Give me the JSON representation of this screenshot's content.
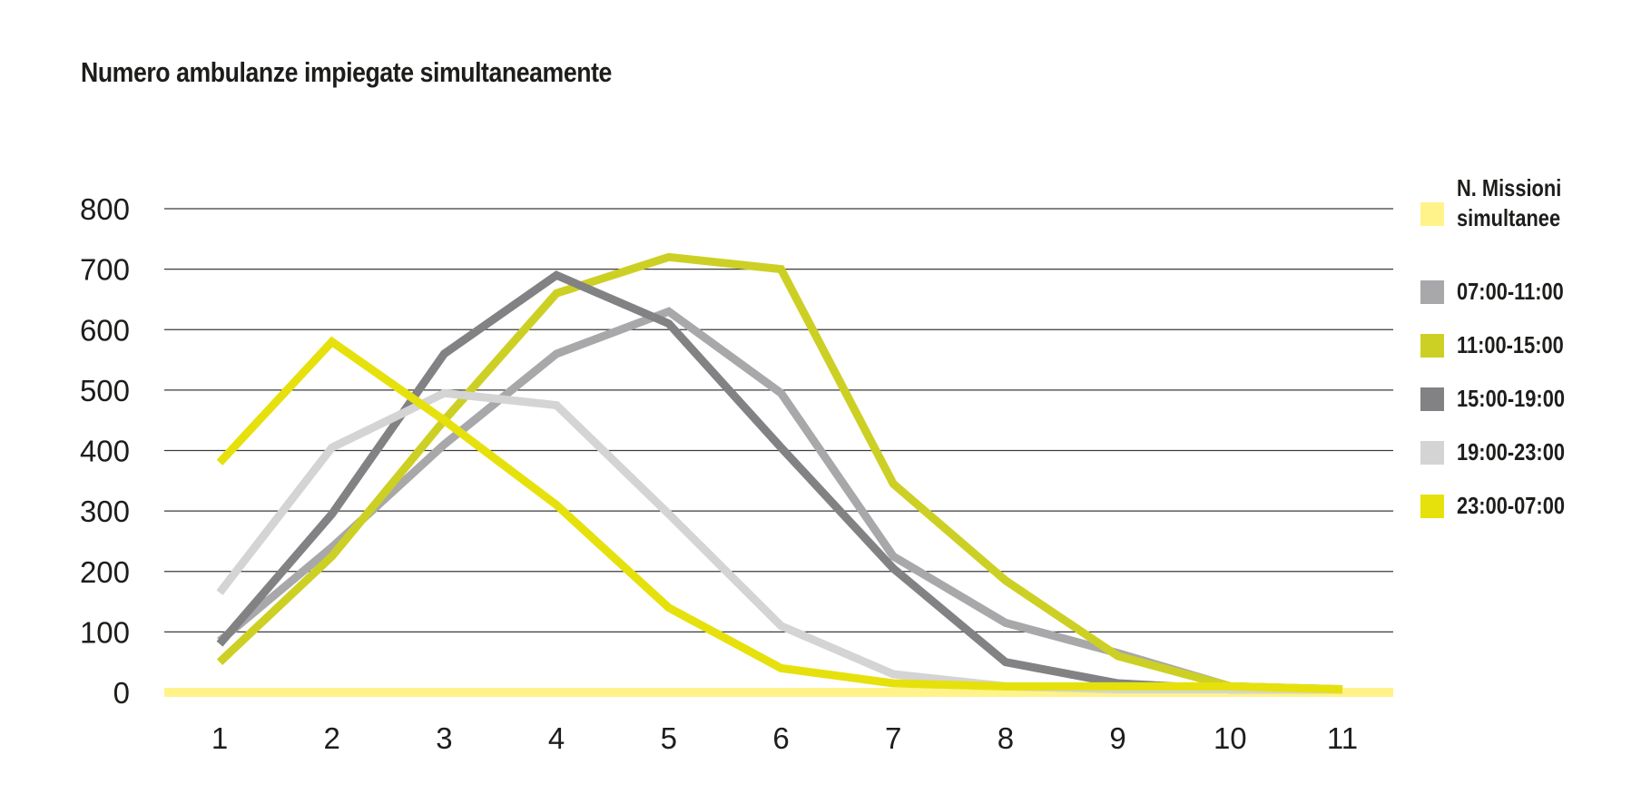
{
  "chart_data": {
    "type": "line",
    "title": "Numero ambulanze impiegate simultaneamente",
    "xlabel": "",
    "ylabel": "",
    "categories": [
      "1",
      "2",
      "3",
      "4",
      "5",
      "6",
      "7",
      "8",
      "9",
      "10",
      "11"
    ],
    "ylim": [
      0,
      800
    ],
    "yticks": [
      "0",
      "100",
      "200",
      "300",
      "400",
      "500",
      "600",
      "700",
      "800"
    ],
    "grid": true,
    "legend_position": "right",
    "series": [
      {
        "name": "N. Missioni simultanee",
        "color": "#fff38a",
        "values": [
          0,
          0,
          0,
          0,
          0,
          0,
          0,
          0,
          0,
          0,
          0
        ]
      },
      {
        "name": "07:00-11:00",
        "color": "#a8a8aa",
        "values": [
          85,
          240,
          410,
          560,
          630,
          495,
          225,
          115,
          65,
          10,
          5
        ]
      },
      {
        "name": "11:00-15:00",
        "color": "#cdd024",
        "values": [
          50,
          225,
          450,
          660,
          720,
          700,
          345,
          185,
          60,
          10,
          5
        ]
      },
      {
        "name": "15:00-19:00",
        "color": "#828284",
        "values": [
          80,
          295,
          560,
          690,
          610,
          405,
          205,
          50,
          15,
          5,
          5
        ]
      },
      {
        "name": "19:00-23:00",
        "color": "#d4d4d5",
        "values": [
          165,
          405,
          495,
          475,
          295,
          110,
          30,
          10,
          5,
          5,
          5
        ]
      },
      {
        "name": "23:00-07:00",
        "color": "#e6e10c",
        "values": [
          380,
          580,
          450,
          310,
          140,
          40,
          15,
          10,
          10,
          10,
          5
        ]
      }
    ]
  }
}
